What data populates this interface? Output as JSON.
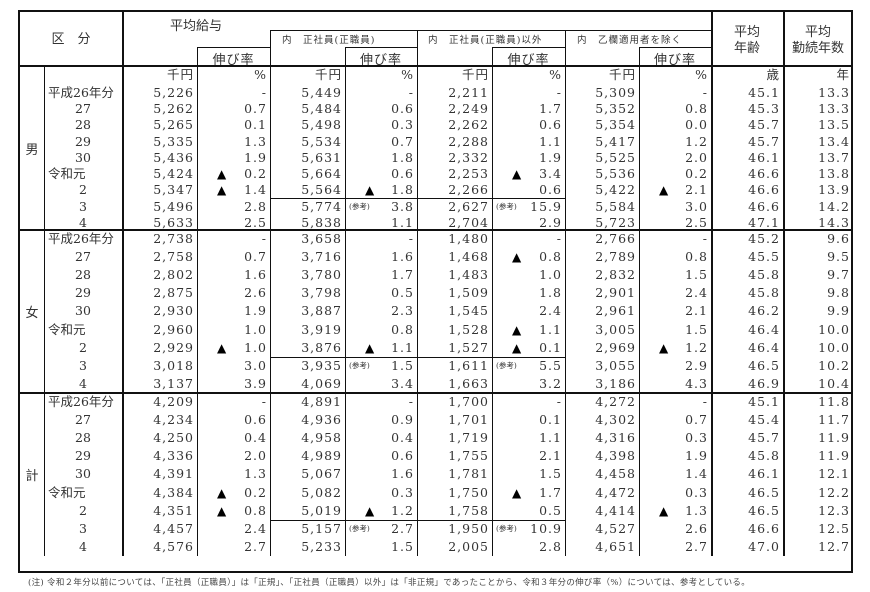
{
  "header": {
    "category": "区　分",
    "avg_salary": "平均給与",
    "growth_rate": "伸び率",
    "regular": "内　正社員(正職員)",
    "non_regular": "内　正社員(正職員)以外",
    "excl_otsu": "内　乙欄適用者を除く",
    "avg_age": "平均\n年齢",
    "avg_age_l1": "平均",
    "avg_age_l2": "年齢",
    "avg_tenure_l1": "平均",
    "avg_tenure_l2": "勤続年数"
  },
  "units": {
    "yen": "千円",
    "pct": "%",
    "age": "歳",
    "year": "年"
  },
  "markers": {
    "triangle": "▲",
    "sanko": "(参考)"
  },
  "groups": [
    {
      "name": "男",
      "rows": [
        {
          "year": "平成26年分",
          "sal": "5,226",
          "sal_r": "-",
          "sal_neg": false,
          "reg": "5,449",
          "reg_r": "-",
          "reg_neg": false,
          "non": "2,211",
          "non_r": "-",
          "non_neg": false,
          "ex": "5,309",
          "ex_r": "-",
          "ex_neg": false,
          "age": "45.1",
          "ten": "13.3"
        },
        {
          "year": "27",
          "sal": "5,262",
          "sal_r": "0.7",
          "sal_neg": false,
          "reg": "5,484",
          "reg_r": "0.6",
          "reg_neg": false,
          "non": "2,249",
          "non_r": "1.7",
          "non_neg": false,
          "ex": "5,352",
          "ex_r": "0.8",
          "ex_neg": false,
          "age": "45.3",
          "ten": "13.3"
        },
        {
          "year": "28",
          "sal": "5,265",
          "sal_r": "0.1",
          "sal_neg": false,
          "reg": "5,498",
          "reg_r": "0.3",
          "reg_neg": false,
          "non": "2,262",
          "non_r": "0.6",
          "non_neg": false,
          "ex": "5,354",
          "ex_r": "0.0",
          "ex_neg": false,
          "age": "45.7",
          "ten": "13.5"
        },
        {
          "year": "29",
          "sal": "5,335",
          "sal_r": "1.3",
          "sal_neg": false,
          "reg": "5,534",
          "reg_r": "0.7",
          "reg_neg": false,
          "non": "2,288",
          "non_r": "1.1",
          "non_neg": false,
          "ex": "5,417",
          "ex_r": "1.2",
          "ex_neg": false,
          "age": "45.7",
          "ten": "13.4"
        },
        {
          "year": "30",
          "sal": "5,436",
          "sal_r": "1.9",
          "sal_neg": false,
          "reg": "5,631",
          "reg_r": "1.8",
          "reg_neg": false,
          "non": "2,332",
          "non_r": "1.9",
          "non_neg": false,
          "ex": "5,525",
          "ex_r": "2.0",
          "ex_neg": false,
          "age": "46.1",
          "ten": "13.7"
        },
        {
          "year": "令和元",
          "sal": "5,424",
          "sal_r": "0.2",
          "sal_neg": true,
          "reg": "5,664",
          "reg_r": "0.6",
          "reg_neg": false,
          "non": "2,253",
          "non_r": "3.4",
          "non_neg": true,
          "ex": "5,536",
          "ex_r": "0.2",
          "ex_neg": false,
          "age": "46.6",
          "ten": "13.8"
        },
        {
          "year": "2",
          "sal": "5,347",
          "sal_r": "1.4",
          "sal_neg": true,
          "reg": "5,564",
          "reg_r": "1.8",
          "reg_neg": true,
          "non": "2,266",
          "non_r": "0.6",
          "non_neg": false,
          "ex": "5,422",
          "ex_r": "2.1",
          "ex_neg": true,
          "age": "46.6",
          "ten": "13.9"
        },
        {
          "year": "3",
          "sal": "5,496",
          "sal_r": "2.8",
          "sal_neg": false,
          "reg": "5,774",
          "reg_r": "3.8",
          "reg_neg": false,
          "reg_sanko": true,
          "non": "2,627",
          "non_r": "15.9",
          "non_neg": false,
          "non_sanko": true,
          "ex": "5,584",
          "ex_r": "3.0",
          "ex_neg": false,
          "age": "46.6",
          "ten": "14.2"
        },
        {
          "year": "4",
          "sal": "5,633",
          "sal_r": "2.5",
          "sal_neg": false,
          "reg": "5,838",
          "reg_r": "1.1",
          "reg_neg": false,
          "non": "2,704",
          "non_r": "2.9",
          "non_neg": false,
          "ex": "5,723",
          "ex_r": "2.5",
          "ex_neg": false,
          "age": "47.1",
          "ten": "14.3"
        }
      ]
    },
    {
      "name": "女",
      "rows": [
        {
          "year": "平成26年分",
          "sal": "2,738",
          "sal_r": "-",
          "sal_neg": false,
          "reg": "3,658",
          "reg_r": "-",
          "reg_neg": false,
          "non": "1,480",
          "non_r": "-",
          "non_neg": false,
          "ex": "2,766",
          "ex_r": "-",
          "ex_neg": false,
          "age": "45.2",
          "ten": "9.6"
        },
        {
          "year": "27",
          "sal": "2,758",
          "sal_r": "0.7",
          "sal_neg": false,
          "reg": "3,716",
          "reg_r": "1.6",
          "reg_neg": false,
          "non": "1,468",
          "non_r": "0.8",
          "non_neg": true,
          "ex": "2,789",
          "ex_r": "0.8",
          "ex_neg": false,
          "age": "45.5",
          "ten": "9.5"
        },
        {
          "year": "28",
          "sal": "2,802",
          "sal_r": "1.6",
          "sal_neg": false,
          "reg": "3,780",
          "reg_r": "1.7",
          "reg_neg": false,
          "non": "1,483",
          "non_r": "1.0",
          "non_neg": false,
          "ex": "2,832",
          "ex_r": "1.5",
          "ex_neg": false,
          "age": "45.8",
          "ten": "9.7"
        },
        {
          "year": "29",
          "sal": "2,875",
          "sal_r": "2.6",
          "sal_neg": false,
          "reg": "3,798",
          "reg_r": "0.5",
          "reg_neg": false,
          "non": "1,509",
          "non_r": "1.8",
          "non_neg": false,
          "ex": "2,901",
          "ex_r": "2.4",
          "ex_neg": false,
          "age": "45.8",
          "ten": "9.8"
        },
        {
          "year": "30",
          "sal": "2,930",
          "sal_r": "1.9",
          "sal_neg": false,
          "reg": "3,887",
          "reg_r": "2.3",
          "reg_neg": false,
          "non": "1,545",
          "non_r": "2.4",
          "non_neg": false,
          "ex": "2,961",
          "ex_r": "2.1",
          "ex_neg": false,
          "age": "46.2",
          "ten": "9.9"
        },
        {
          "year": "令和元",
          "sal": "2,960",
          "sal_r": "1.0",
          "sal_neg": false,
          "reg": "3,919",
          "reg_r": "0.8",
          "reg_neg": false,
          "non": "1,528",
          "non_r": "1.1",
          "non_neg": true,
          "ex": "3,005",
          "ex_r": "1.5",
          "ex_neg": false,
          "age": "46.4",
          "ten": "10.0"
        },
        {
          "year": "2",
          "sal": "2,929",
          "sal_r": "1.0",
          "sal_neg": true,
          "reg": "3,876",
          "reg_r": "1.1",
          "reg_neg": true,
          "non": "1,527",
          "non_r": "0.1",
          "non_neg": true,
          "ex": "2,969",
          "ex_r": "1.2",
          "ex_neg": true,
          "age": "46.4",
          "ten": "10.0"
        },
        {
          "year": "3",
          "sal": "3,018",
          "sal_r": "3.0",
          "sal_neg": false,
          "reg": "3,935",
          "reg_r": "1.5",
          "reg_neg": false,
          "reg_sanko": true,
          "non": "1,611",
          "non_r": "5.5",
          "non_neg": false,
          "non_sanko": true,
          "ex": "3,055",
          "ex_r": "2.9",
          "ex_neg": false,
          "age": "46.5",
          "ten": "10.2"
        },
        {
          "year": "4",
          "sal": "3,137",
          "sal_r": "3.9",
          "sal_neg": false,
          "reg": "4,069",
          "reg_r": "3.4",
          "reg_neg": false,
          "non": "1,663",
          "non_r": "3.2",
          "non_neg": false,
          "ex": "3,186",
          "ex_r": "4.3",
          "ex_neg": false,
          "age": "46.9",
          "ten": "10.4"
        }
      ]
    },
    {
      "name": "計",
      "rows": [
        {
          "year": "平成26年分",
          "sal": "4,209",
          "sal_r": "-",
          "sal_neg": false,
          "reg": "4,891",
          "reg_r": "-",
          "reg_neg": false,
          "non": "1,700",
          "non_r": "-",
          "non_neg": false,
          "ex": "4,272",
          "ex_r": "-",
          "ex_neg": false,
          "age": "45.1",
          "ten": "11.8"
        },
        {
          "year": "27",
          "sal": "4,234",
          "sal_r": "0.6",
          "sal_neg": false,
          "reg": "4,936",
          "reg_r": "0.9",
          "reg_neg": false,
          "non": "1,701",
          "non_r": "0.1",
          "non_neg": false,
          "ex": "4,302",
          "ex_r": "0.7",
          "ex_neg": false,
          "age": "45.4",
          "ten": "11.7"
        },
        {
          "year": "28",
          "sal": "4,250",
          "sal_r": "0.4",
          "sal_neg": false,
          "reg": "4,958",
          "reg_r": "0.4",
          "reg_neg": false,
          "non": "1,719",
          "non_r": "1.1",
          "non_neg": false,
          "ex": "4,316",
          "ex_r": "0.3",
          "ex_neg": false,
          "age": "45.7",
          "ten": "11.9"
        },
        {
          "year": "29",
          "sal": "4,336",
          "sal_r": "2.0",
          "sal_neg": false,
          "reg": "4,989",
          "reg_r": "0.6",
          "reg_neg": false,
          "non": "1,755",
          "non_r": "2.1",
          "non_neg": false,
          "ex": "4,398",
          "ex_r": "1.9",
          "ex_neg": false,
          "age": "45.8",
          "ten": "11.9"
        },
        {
          "year": "30",
          "sal": "4,391",
          "sal_r": "1.3",
          "sal_neg": false,
          "reg": "5,067",
          "reg_r": "1.6",
          "reg_neg": false,
          "non": "1,781",
          "non_r": "1.5",
          "non_neg": false,
          "ex": "4,458",
          "ex_r": "1.4",
          "ex_neg": false,
          "age": "46.1",
          "ten": "12.1"
        },
        {
          "year": "令和元",
          "sal": "4,384",
          "sal_r": "0.2",
          "sal_neg": true,
          "reg": "5,082",
          "reg_r": "0.3",
          "reg_neg": false,
          "non": "1,750",
          "non_r": "1.7",
          "non_neg": true,
          "ex": "4,472",
          "ex_r": "0.3",
          "ex_neg": false,
          "age": "46.5",
          "ten": "12.2"
        },
        {
          "year": "2",
          "sal": "4,351",
          "sal_r": "0.8",
          "sal_neg": true,
          "reg": "5,019",
          "reg_r": "1.2",
          "reg_neg": true,
          "non": "1,758",
          "non_r": "0.5",
          "non_neg": false,
          "ex": "4,414",
          "ex_r": "1.3",
          "ex_neg": true,
          "age": "46.5",
          "ten": "12.3"
        },
        {
          "year": "3",
          "sal": "4,457",
          "sal_r": "2.4",
          "sal_neg": false,
          "reg": "5,157",
          "reg_r": "2.7",
          "reg_neg": false,
          "reg_sanko": true,
          "non": "1,950",
          "non_r": "10.9",
          "non_neg": false,
          "non_sanko": true,
          "ex": "4,527",
          "ex_r": "2.6",
          "ex_neg": false,
          "age": "46.6",
          "ten": "12.5"
        },
        {
          "year": "4",
          "sal": "4,576",
          "sal_r": "2.7",
          "sal_neg": false,
          "reg": "5,233",
          "reg_r": "1.5",
          "reg_neg": false,
          "non": "2,005",
          "non_r": "2.8",
          "non_neg": false,
          "ex": "4,651",
          "ex_r": "2.7",
          "ex_neg": false,
          "age": "47.0",
          "ten": "12.7"
        }
      ]
    }
  ],
  "note": "(注) 令和２年分以前については、「正社員（正職員）」は「正規」、「正社員（正職員）以外」は「非正規」であったことから、令和３年分の伸び率（%）については、参考としている。"
}
